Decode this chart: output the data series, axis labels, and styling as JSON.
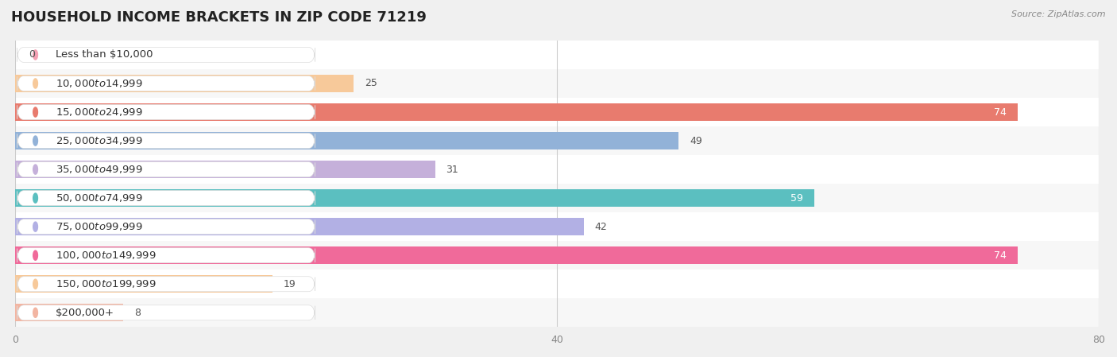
{
  "title": "HOUSEHOLD INCOME BRACKETS IN ZIP CODE 71219",
  "source": "Source: ZipAtlas.com",
  "categories": [
    "Less than $10,000",
    "$10,000 to $14,999",
    "$15,000 to $24,999",
    "$25,000 to $34,999",
    "$35,000 to $49,999",
    "$50,000 to $74,999",
    "$75,000 to $99,999",
    "$100,000 to $149,999",
    "$150,000 to $199,999",
    "$200,000+"
  ],
  "values": [
    0,
    25,
    74,
    49,
    31,
    59,
    42,
    74,
    19,
    8
  ],
  "colors": [
    "#f5a0b4",
    "#f7c99a",
    "#e87b6e",
    "#92b2d8",
    "#c5b0da",
    "#5bbfc0",
    "#b2b0e4",
    "#f06a9a",
    "#f7c99a",
    "#f2b5a2"
  ],
  "xlim": [
    0,
    80
  ],
  "xticks": [
    0,
    40,
    80
  ],
  "bg_color": "#f0f0f0",
  "row_colors": [
    "#ffffff",
    "#f7f7f7"
  ],
  "title_fontsize": 13,
  "label_fontsize": 9.5,
  "value_fontsize": 9,
  "bar_height": 0.62
}
